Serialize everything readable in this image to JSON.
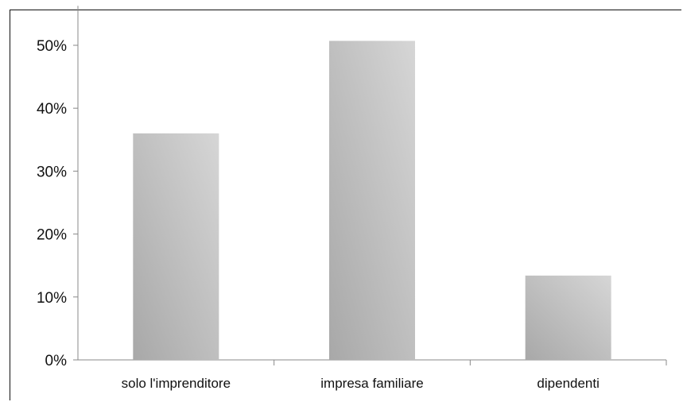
{
  "chart_data": {
    "type": "bar",
    "title": "",
    "xlabel": "",
    "ylabel": "",
    "categories": [
      "solo l'imprenditore",
      "impresa familiare",
      "dipendenti"
    ],
    "values": [
      0.36,
      0.507,
      0.134
    ],
    "ylim": [
      0,
      0.55
    ],
    "yticks": [
      0,
      0.1,
      0.2,
      0.3,
      0.4,
      0.5
    ],
    "ytick_labels": [
      "0%",
      "10%",
      "20%",
      "30%",
      "40%",
      "50%"
    ],
    "grid": false,
    "legend": "none",
    "colors": {
      "bar_light": "#d4d4d4",
      "bar_dark": "#a8a8a8",
      "axis": "#888888"
    }
  }
}
